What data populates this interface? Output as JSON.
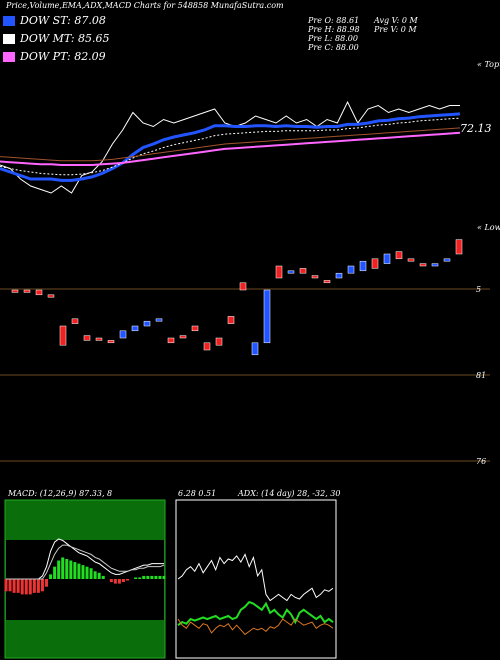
{
  "header": {
    "title": "Price,Volume,EMA,ADX,MACD Charts for 548858 MunafaSutra.com",
    "legend": [
      {
        "name": "DOW ST: 87.08",
        "color": "#2255ff"
      },
      {
        "name": "DOW MT: 85.65",
        "color": "#ffffff"
      },
      {
        "name": "DOW PT: 82.09",
        "color": "#ff66ff"
      }
    ],
    "quotes": [
      "Pre O: 88.61",
      "Pre H: 88.98",
      "Pre L: 88.00",
      "Pre C: 88.00"
    ],
    "volume": [
      "Avg V: 0 M",
      "Pre V: 0 M"
    ],
    "side_labels": [
      "« Topu",
      "« Lowe",
      "5",
      "81",
      "76"
    ],
    "overlap": "6.28 0.51"
  },
  "chart_data": [
    {
      "type": "line",
      "ylim": [
        62,
        82
      ],
      "yticks": [
        72.13
      ],
      "series": [
        {
          "name": "Price",
          "color": "#ffffff",
          "values": [
            67,
            66.5,
            65,
            64,
            63.5,
            63,
            64,
            63,
            65.5,
            66,
            67.5,
            70,
            72,
            74.5,
            73,
            72.5,
            73.5,
            73,
            73.5,
            74,
            74.5,
            75,
            73,
            72.5,
            73,
            74,
            73.5,
            73,
            74,
            73,
            73.5,
            72.5,
            73.5,
            73,
            76,
            73,
            75,
            75.5,
            74.5,
            75,
            74.5,
            75,
            75.5,
            75,
            75.5,
            75.5
          ]
        },
        {
          "name": "EMA short",
          "color": "#2255ff",
          "values": [
            66.5,
            66,
            65.5,
            65,
            65,
            65,
            64.8,
            64.8,
            65,
            65.3,
            65.8,
            66.5,
            67.3,
            68.5,
            69.5,
            70,
            70.6,
            71,
            71.3,
            71.6,
            72,
            72.6,
            72.6,
            72.5,
            72.5,
            72.6,
            72.6,
            72.5,
            72.6,
            72.5,
            72.5,
            72.4,
            72.5,
            72.5,
            72.8,
            72.8,
            73,
            73.3,
            73.4,
            73.6,
            73.7,
            73.9,
            74,
            74.1,
            74.2,
            74.3
          ]
        },
        {
          "name": "EMA mid",
          "color": "#ffffff",
          "values": [
            66.8,
            66.5,
            66.2,
            66,
            65.8,
            65.7,
            65.6,
            65.6,
            65.7,
            65.9,
            66.2,
            66.7,
            67.3,
            68,
            68.6,
            69,
            69.5,
            69.9,
            70.2,
            70.5,
            70.8,
            71.2,
            71.4,
            71.5,
            71.6,
            71.7,
            71.8,
            71.8,
            71.9,
            71.9,
            71.9,
            71.9,
            72,
            72,
            72.2,
            72.3,
            72.5,
            72.7,
            72.8,
            73,
            73.1,
            73.3,
            73.4,
            73.5,
            73.6,
            73.7
          ]
        },
        {
          "name": "EMA long",
          "color": "#ff66ff",
          "values": [
            67.5,
            67.4,
            67.3,
            67.2,
            67.1,
            67.1,
            67,
            67,
            67,
            67,
            67.1,
            67.2,
            67.3,
            67.5,
            67.7,
            67.9,
            68.1,
            68.3,
            68.5,
            68.7,
            68.9,
            69.1,
            69.3,
            69.4,
            69.5,
            69.6,
            69.7,
            69.8,
            69.9,
            70,
            70.1,
            70.2,
            70.3,
            70.4,
            70.5,
            70.6,
            70.7,
            70.8,
            70.9,
            71,
            71.1,
            71.2,
            71.3,
            71.4,
            71.5,
            71.6
          ]
        },
        {
          "name": "EMA extra",
          "color": "#a0522d",
          "values": [
            68.2,
            68.1,
            68,
            67.9,
            67.8,
            67.7,
            67.6,
            67.6,
            67.6,
            67.6,
            67.7,
            67.8,
            68,
            68.2,
            68.4,
            68.6,
            68.8,
            69,
            69.2,
            69.4,
            69.6,
            69.8,
            70,
            70.1,
            70.2,
            70.3,
            70.4,
            70.5,
            70.6,
            70.7,
            70.8,
            70.9,
            71,
            71.1,
            71.2,
            71.3,
            71.4,
            71.5,
            71.6,
            71.7,
            71.8,
            71.9,
            72,
            72.1,
            72.2,
            72.3
          ]
        }
      ]
    },
    {
      "type": "candlestick",
      "ylim": [
        0,
        100
      ],
      "open": [
        75,
        75,
        75,
        73,
        60,
        63,
        56,
        55,
        54,
        55,
        58,
        60,
        62,
        55,
        56,
        60,
        53,
        55,
        64,
        78,
        48,
        53,
        85,
        82,
        84,
        81,
        79,
        80,
        82,
        83,
        88,
        86,
        91,
        88,
        86,
        85,
        87,
        96
      ],
      "close": [
        74,
        74,
        73,
        72,
        52,
        61,
        54,
        54,
        53,
        58,
        60,
        62,
        63,
        53,
        55,
        58,
        50,
        52,
        61,
        75,
        53,
        75,
        80,
        83,
        82,
        80,
        78,
        82,
        85,
        87,
        84,
        90,
        88,
        87,
        85,
        86,
        88,
        90
      ]
    },
    {
      "type": "macd",
      "title": "MACD: (12,26,9) 87.33, 8",
      "ylim": [
        -5,
        5
      ],
      "histogram": [
        -0.8,
        -0.8,
        -0.9,
        -0.9,
        -1,
        -1,
        -1,
        -0.9,
        -0.9,
        -0.8,
        -0.5,
        0.3,
        0.8,
        1.2,
        1.4,
        1.3,
        1.2,
        1.1,
        1,
        0.9,
        0.8,
        0.7,
        0.5,
        0.4,
        0.2,
        0,
        -0.2,
        -0.3,
        -0.3,
        -0.2,
        -0.1,
        0,
        0.1,
        0.1,
        0.2,
        0.2,
        0.2,
        0.2,
        0.2,
        0.2
      ],
      "series": [
        {
          "name": "MACD",
          "color": "#ffffff",
          "values": [
            0,
            0,
            0,
            0,
            0,
            0,
            0,
            0,
            0,
            0.2,
            0.8,
            1.8,
            2.4,
            2.6,
            2.5,
            2.3,
            2.1,
            1.9,
            1.7,
            1.6,
            1.5,
            1.3,
            1.1,
            1,
            0.8,
            0.6,
            0.4,
            0.3,
            0.3,
            0.4,
            0.5,
            0.6,
            0.7,
            0.8,
            0.9,
            0.9,
            1,
            1,
            1,
            1
          ]
        },
        {
          "name": "Signal",
          "color": "#cccccc",
          "values": [
            0,
            0,
            0,
            0,
            0,
            0,
            0,
            0,
            0,
            0,
            0.4,
            1,
            1.6,
            2,
            2.2,
            2.2,
            2.1,
            2,
            1.9,
            1.8,
            1.7,
            1.6,
            1.4,
            1.3,
            1.1,
            0.9,
            0.7,
            0.6,
            0.5,
            0.5,
            0.5,
            0.6,
            0.6,
            0.7,
            0.7,
            0.8,
            0.8,
            0.8,
            0.8,
            0.9
          ]
        }
      ]
    },
    {
      "type": "adx",
      "title": "ADX: (14 day) 28, -32, 30",
      "ylim": [
        0,
        100
      ],
      "series": [
        {
          "name": "ADX",
          "color": "#ffffff",
          "values": [
            50,
            52,
            56,
            58,
            55,
            60,
            54,
            58,
            62,
            56,
            64,
            60,
            63,
            62,
            65,
            61,
            66,
            58,
            64,
            52,
            56,
            40,
            36,
            38,
            40,
            38,
            36,
            40,
            38,
            37,
            40,
            42,
            44,
            38,
            40,
            43,
            42,
            44
          ]
        },
        {
          "name": "+DI",
          "color": "#22dd22",
          "values": [
            20,
            22,
            21,
            24,
            23,
            24,
            25,
            24,
            25,
            26,
            24,
            25,
            26,
            24,
            25,
            30,
            32,
            35,
            34,
            32,
            30,
            34,
            28,
            30,
            27,
            25,
            30,
            27,
            22,
            28,
            30,
            28,
            26,
            24,
            26,
            22,
            24,
            22
          ]
        },
        {
          "name": "-DI",
          "color": "#dd7722",
          "values": [
            24,
            20,
            18,
            22,
            20,
            18,
            21,
            20,
            15,
            18,
            20,
            19,
            21,
            17,
            20,
            17,
            14,
            16,
            18,
            17,
            18,
            16,
            19,
            18,
            20,
            24,
            22,
            20,
            24,
            22,
            20,
            21,
            22,
            18,
            20,
            21,
            20,
            18
          ]
        }
      ]
    }
  ]
}
